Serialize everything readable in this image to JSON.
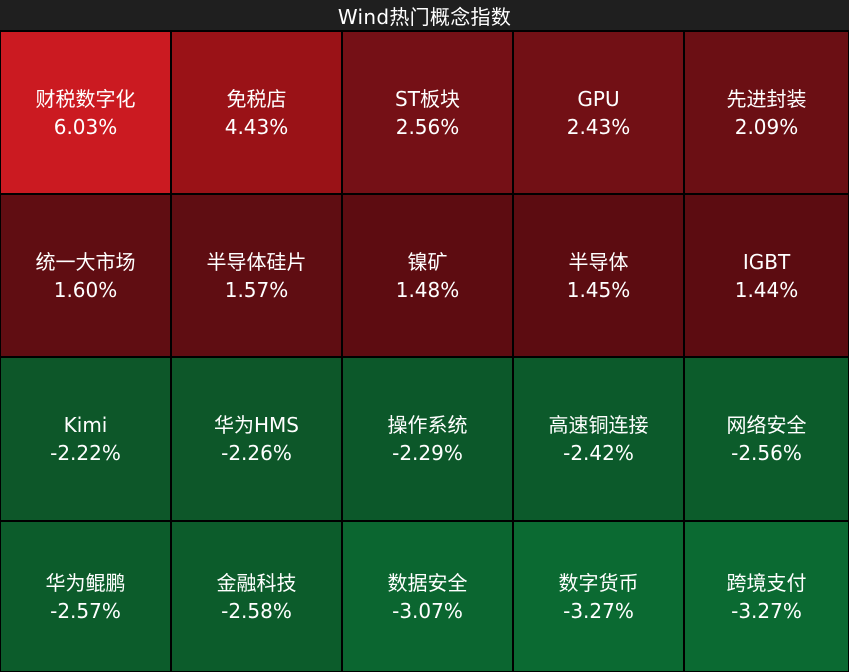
{
  "title": "Wind热门概念指数",
  "chart_data": {
    "type": "heatmap",
    "title": "Wind热门概念指数",
    "unit": "%",
    "colors": {
      "positive_strong": "#cb1a21",
      "positive_mid": "#9a1217",
      "positive_weak": "#721015",
      "positive_weakest": "#5f0d12",
      "negative_weak": "#0d5729",
      "negative_mid": "#0c592a",
      "negative_strong": "#0b6630",
      "negative_strongest": "#0b6a32"
    },
    "tiles": [
      {
        "name": "财税数字化",
        "value": 6.03,
        "label": "6.03%",
        "color": "#cb1a21"
      },
      {
        "name": "免税店",
        "value": 4.43,
        "label": "4.43%",
        "color": "#9a1217"
      },
      {
        "name": "ST板块",
        "value": 2.56,
        "label": "2.56%",
        "color": "#751016"
      },
      {
        "name": "GPU",
        "value": 2.43,
        "label": "2.43%",
        "color": "#721015"
      },
      {
        "name": "先进封装",
        "value": 2.09,
        "label": "2.09%",
        "color": "#6b0f14"
      },
      {
        "name": "统一大市场",
        "value": 1.6,
        "label": "1.60%",
        "color": "#600d12"
      },
      {
        "name": "半导体硅片",
        "value": 1.57,
        "label": "1.57%",
        "color": "#5f0d12"
      },
      {
        "name": "镍矿",
        "value": 1.48,
        "label": "1.48%",
        "color": "#5d0c11"
      },
      {
        "name": "半导体",
        "value": 1.45,
        "label": "1.45%",
        "color": "#5c0c11"
      },
      {
        "name": "IGBT",
        "value": 1.44,
        "label": "1.44%",
        "color": "#5c0c11"
      },
      {
        "name": "Kimi",
        "value": -2.22,
        "label": "-2.22%",
        "color": "#0d5729"
      },
      {
        "name": "华为HMS",
        "value": -2.26,
        "label": "-2.26%",
        "color": "#0d5729"
      },
      {
        "name": "操作系统",
        "value": -2.29,
        "label": "-2.29%",
        "color": "#0c582a"
      },
      {
        "name": "高速铜连接",
        "value": -2.42,
        "label": "-2.42%",
        "color": "#0c5a2b"
      },
      {
        "name": "网络安全",
        "value": -2.56,
        "label": "-2.56%",
        "color": "#0c5c2b"
      },
      {
        "name": "华为鲲鹏",
        "value": -2.57,
        "label": "-2.57%",
        "color": "#0c5c2b"
      },
      {
        "name": "金融科技",
        "value": -2.58,
        "label": "-2.58%",
        "color": "#0c5c2b"
      },
      {
        "name": "数据安全",
        "value": -3.07,
        "label": "-3.07%",
        "color": "#0b6630"
      },
      {
        "name": "数字货币",
        "value": -3.27,
        "label": "-3.27%",
        "color": "#0b6a32"
      },
      {
        "name": "跨境支付",
        "value": -3.27,
        "label": "-3.27%",
        "color": "#0b6a32"
      }
    ]
  }
}
